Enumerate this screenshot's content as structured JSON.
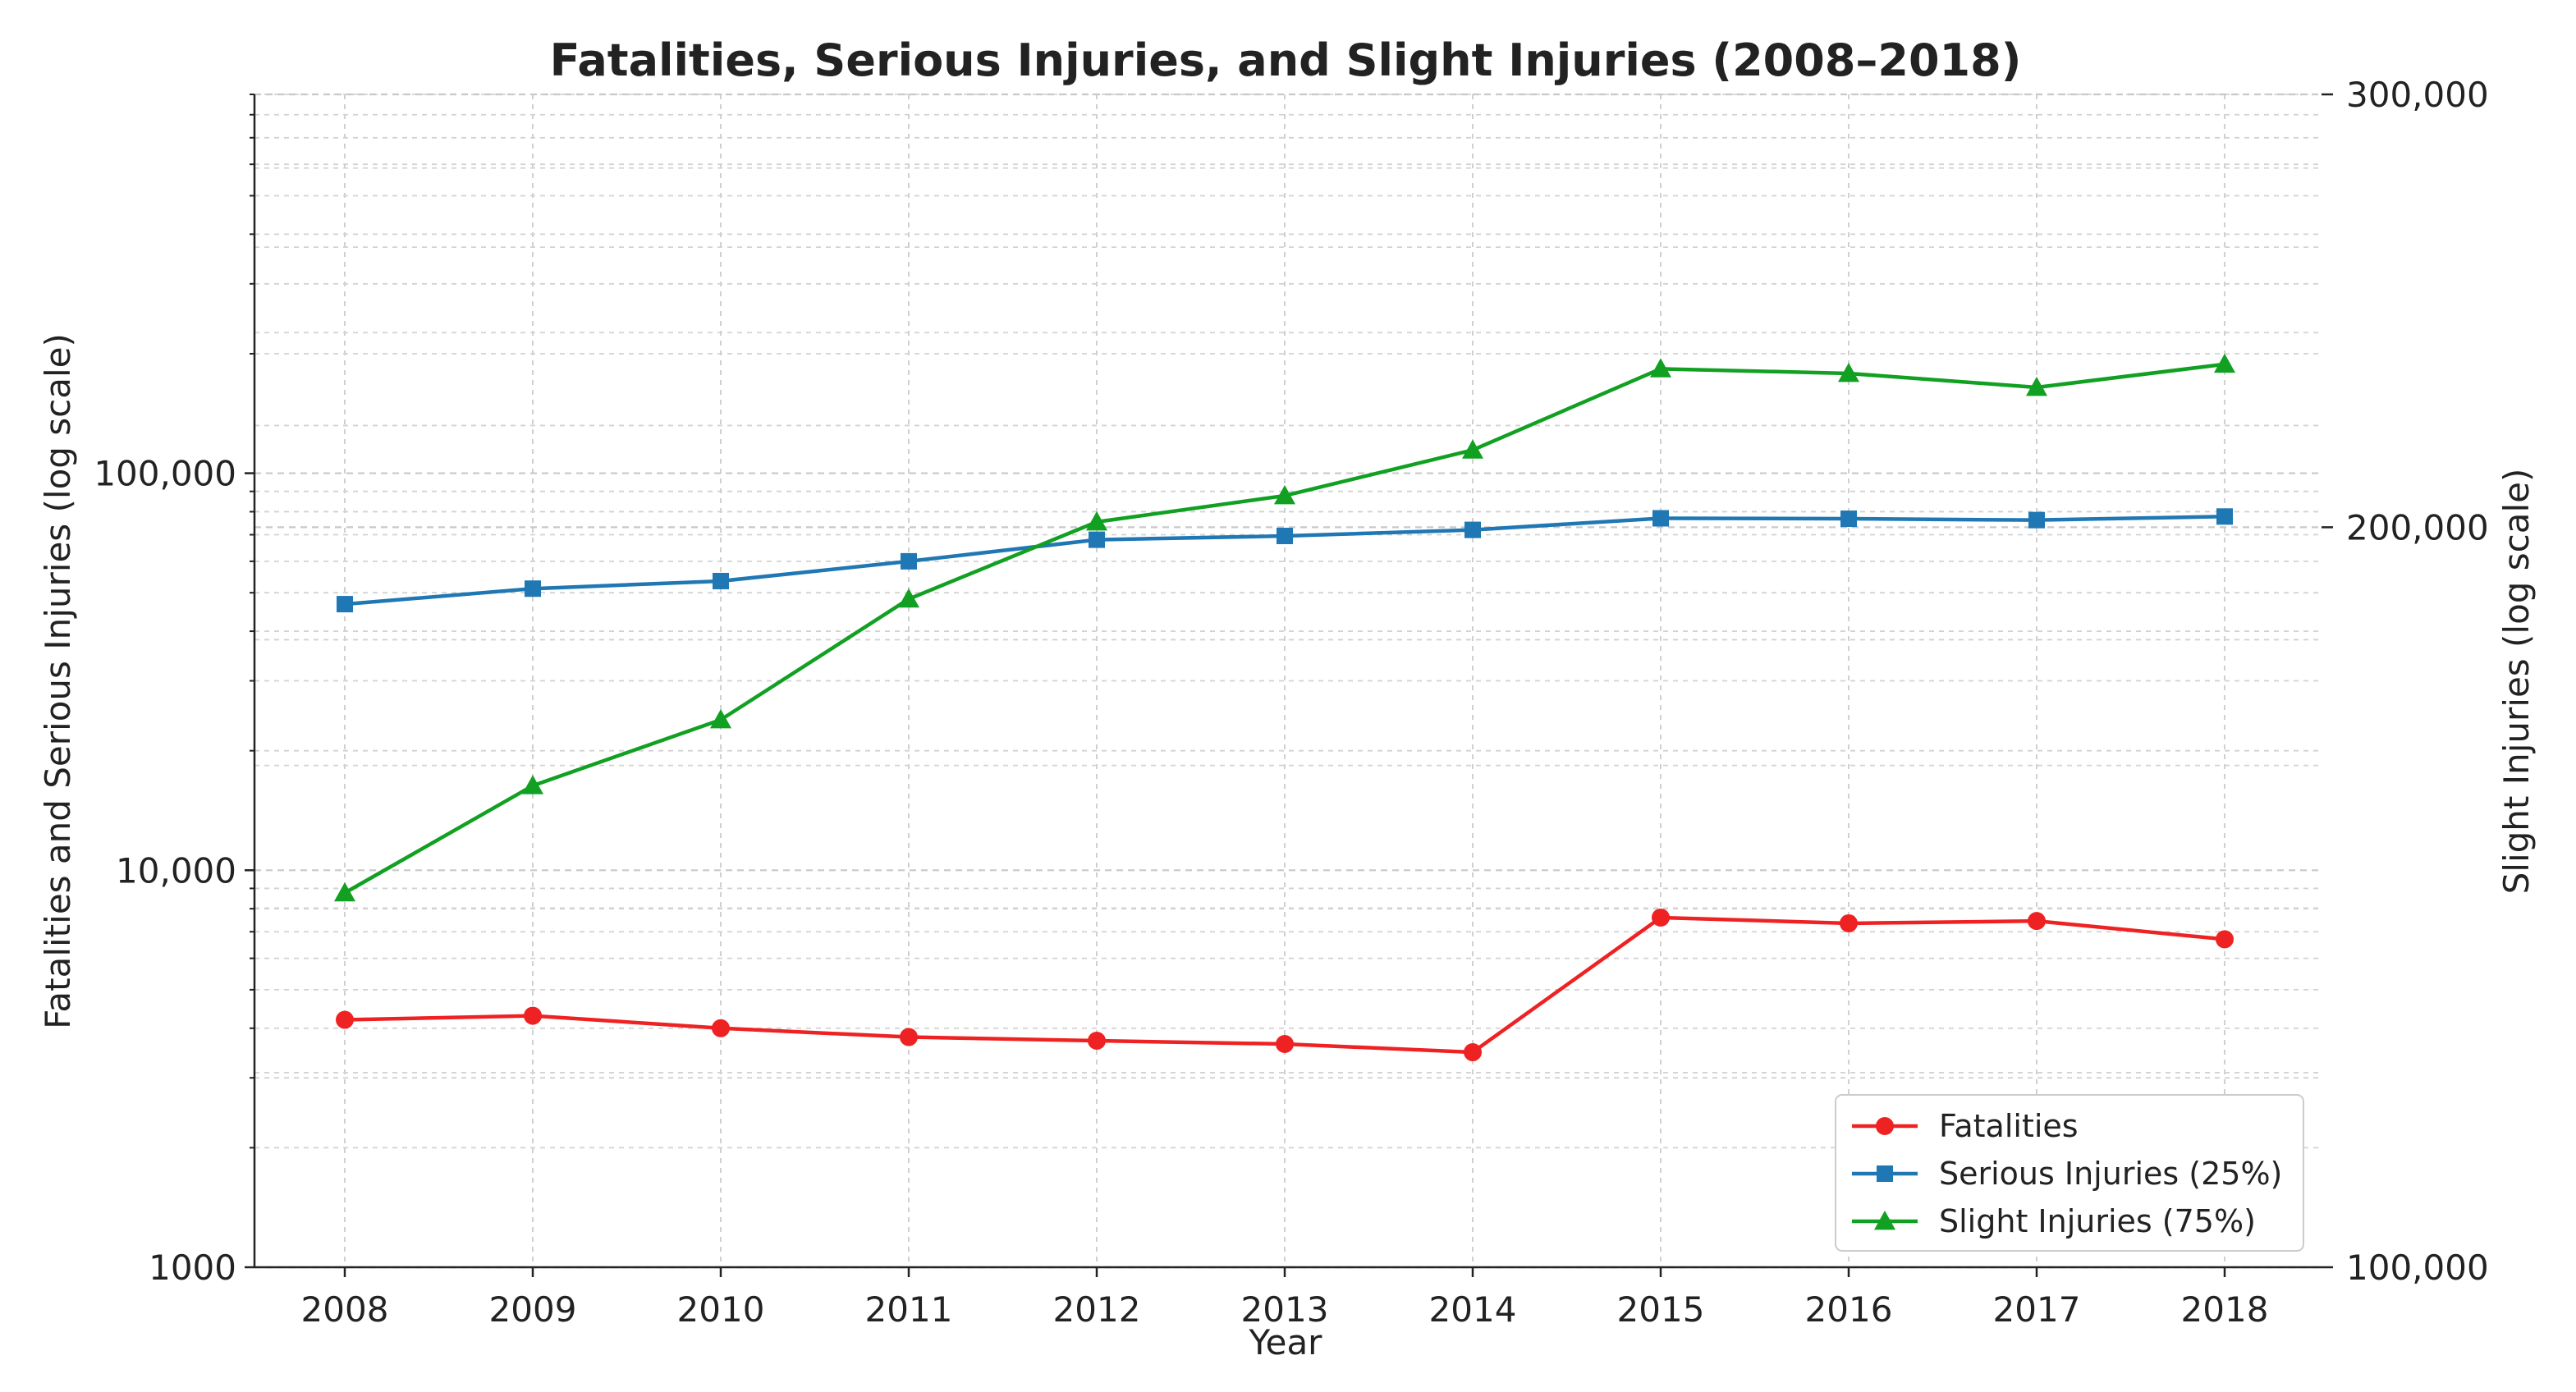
{
  "chart_data": {
    "type": "line",
    "title": "Fatalities, Serious Injuries, and Slight Injuries (2008–2018)",
    "xlabel": "Year",
    "ylabel_left": "Fatalities and Serious Injuries (log scale)",
    "ylabel_right": "Slight Injuries (log scale)",
    "x": [
      2008,
      2009,
      2010,
      2011,
      2012,
      2013,
      2014,
      2015,
      2016,
      2017,
      2018
    ],
    "x_tick_labels": [
      "2008",
      "2009",
      "2010",
      "2011",
      "2012",
      "2013",
      "2014",
      "2015",
      "2016",
      "2017",
      "2018"
    ],
    "left_axis": {
      "scale": "log",
      "ylim": [
        1000,
        900000
      ],
      "ticks": [
        1000,
        10000,
        100000
      ],
      "tick_labels": [
        "1000",
        "10,000",
        "100,000"
      ]
    },
    "right_axis": {
      "scale": "log",
      "ylim": [
        100000,
        300000
      ],
      "ticks": [
        100000,
        200000,
        300000
      ],
      "tick_labels": [
        "100,000",
        "200,000",
        "300,000"
      ]
    },
    "grid": true,
    "legend_position": "lower-right",
    "series": [
      {
        "name": "Fatalities",
        "axis": "left",
        "color": "#ee2222",
        "marker": "circle",
        "values": [
          4200,
          4300,
          4000,
          3800,
          3720,
          3650,
          3480,
          7600,
          7350,
          7450,
          6700
        ]
      },
      {
        "name": "Serious Injuries (25%)",
        "axis": "left",
        "color": "#1f77b4",
        "marker": "square",
        "values": [
          46800,
          51200,
          53500,
          60000,
          68000,
          69500,
          72000,
          77000,
          76800,
          76200,
          77800
        ]
      },
      {
        "name": "Slight Injuries (75%)",
        "axis": "right",
        "color": "#11a022",
        "marker": "triangle",
        "values": [
          142000,
          157000,
          167000,
          187000,
          201000,
          206000,
          215000,
          232000,
          231000,
          228000,
          233000
        ]
      }
    ]
  }
}
